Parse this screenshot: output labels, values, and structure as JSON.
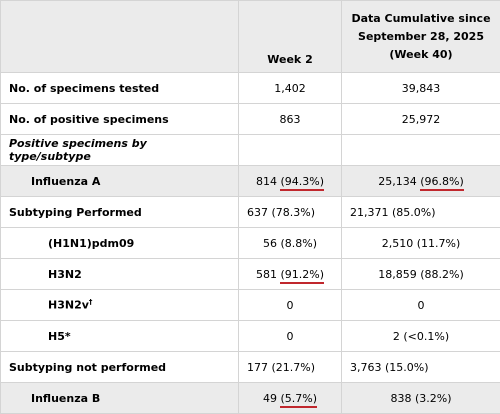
{
  "header": {
    "col_week": "Week 2",
    "col_cumulative": [
      "Data Cumulative since",
      "September 28, 2025",
      "(Week 40)"
    ]
  },
  "rows": [
    {
      "label": "No. of specimens tested",
      "week": "1,402",
      "cumulative": "39,843"
    },
    {
      "label": "No. of positive specimens",
      "week": "863",
      "cumulative": "25,972"
    },
    {
      "label": "Positive specimens by type/subtype"
    },
    {
      "label": "Influenza A",
      "week_value": "814",
      "week_pct": "(94.3%)",
      "cum_value": "25,134",
      "cum_pct": "(96.8%)"
    },
    {
      "label": "Subtyping Performed",
      "week": "637 (78.3%)",
      "cumulative": "21,371 (85.0%)"
    },
    {
      "label": "(H1N1)pdm09",
      "week": "56 (8.8%)",
      "cumulative": "2,510 (11.7%)"
    },
    {
      "label": "H3N2",
      "week_value": "581",
      "week_pct": "(91.2%)",
      "cumulative": "18,859 (88.2%)"
    },
    {
      "label": "H3N2v",
      "label_sup": "†",
      "week": "0",
      "cumulative": "0"
    },
    {
      "label": "H5*",
      "week": "0",
      "cumulative": "2 (<0.1%)"
    },
    {
      "label": "Subtyping not performed",
      "week": "177 (21.7%)",
      "cumulative": "3,763 (15.0%)"
    },
    {
      "label": "Influenza B",
      "week_value": "49",
      "week_pct": "(5.7%)",
      "cumulative": "838 (3.2%)"
    }
  ],
  "colors": {
    "header_bg": "#ebebeb",
    "border": "#d4d4d4",
    "underline": "#c0272d"
  }
}
